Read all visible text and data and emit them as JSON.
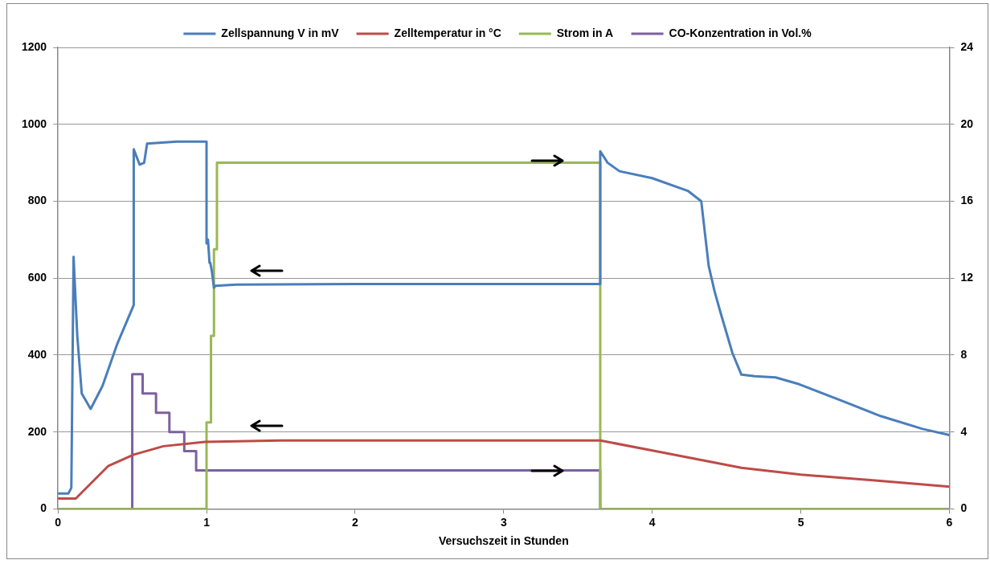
{
  "chart_data": {
    "type": "line",
    "xlabel": "Versuchszeit in Stunden",
    "xlim": [
      0,
      6
    ],
    "xticks": [
      0,
      1,
      2,
      3,
      4,
      5,
      6
    ],
    "ylim": [
      0,
      1200
    ],
    "yticks": [
      0,
      200,
      400,
      600,
      800,
      1000,
      1200
    ],
    "y2lim": [
      0,
      24
    ],
    "y2ticks": [
      0,
      4,
      8,
      12,
      16,
      20,
      24
    ],
    "grid": "y",
    "legend": "top",
    "marker": "none",
    "line_style": "solid",
    "series": [
      {
        "name": "Zellspannung V in mV",
        "color": "#4a7ebb",
        "x": [
          0,
          0.07,
          0.09,
          0.105,
          0.13,
          0.16,
          0.22,
          0.3,
          0.4,
          0.51,
          0.51,
          0.55,
          0.58,
          0.6,
          0.8,
          1.0,
          1.0,
          1.01,
          1.02,
          1.025,
          1.035,
          1.05,
          1.06,
          1.2,
          2,
          3,
          3.65,
          3.65,
          3.7,
          3.78,
          4,
          4.24,
          4.33,
          4.38,
          4.42,
          4.46,
          4.54,
          4.6,
          4.69,
          4.83,
          4.99,
          5.27,
          5.54,
          5.82,
          6
        ],
        "values": [
          40,
          40,
          55,
          655,
          450,
          300,
          260,
          320,
          430,
          530,
          935,
          895,
          900,
          950,
          955,
          955,
          690,
          700,
          640,
          640,
          620,
          575,
          580,
          583,
          585,
          585,
          585,
          930,
          900,
          878,
          860,
          827,
          800,
          632,
          565,
          510,
          405,
          349,
          345,
          342,
          324,
          282,
          241,
          208,
          192
        ]
      },
      {
        "name": "Zelltemperatur in °C",
        "color": "#be4b48",
        "x": [
          0,
          0.12,
          0.34,
          0.51,
          0.71,
          0.99,
          1.5,
          2,
          3,
          3.65,
          4.05,
          4.6,
          5,
          5.5,
          6
        ],
        "values": [
          27,
          27,
          112,
          141,
          163,
          174,
          178,
          178,
          178,
          178,
          148,
          107,
          89,
          74,
          58
        ]
      },
      {
        "name": "Strom in A",
        "color": "#98b954",
        "axis": "y2",
        "x": [
          0,
          1.0,
          1.0,
          1.03,
          1.03,
          1.05,
          1.05,
          1.07,
          1.07,
          3.65,
          3.65,
          6
        ],
        "values": [
          0,
          0,
          4.5,
          4.5,
          9,
          9,
          13.5,
          13.5,
          18,
          18,
          0,
          0
        ]
      },
      {
        "name": "CO-Konzentration in Vol.%",
        "color": "#7d60a0",
        "axis": "y2",
        "x": [
          0,
          0.5,
          0.5,
          0.57,
          0.57,
          0.66,
          0.66,
          0.75,
          0.75,
          0.85,
          0.85,
          0.93,
          0.93,
          3.65,
          3.65,
          6
        ],
        "values": [
          0,
          0,
          7,
          7,
          6,
          6,
          5,
          5,
          4,
          4,
          3,
          3,
          2,
          2,
          0,
          0
        ]
      }
    ]
  }
}
